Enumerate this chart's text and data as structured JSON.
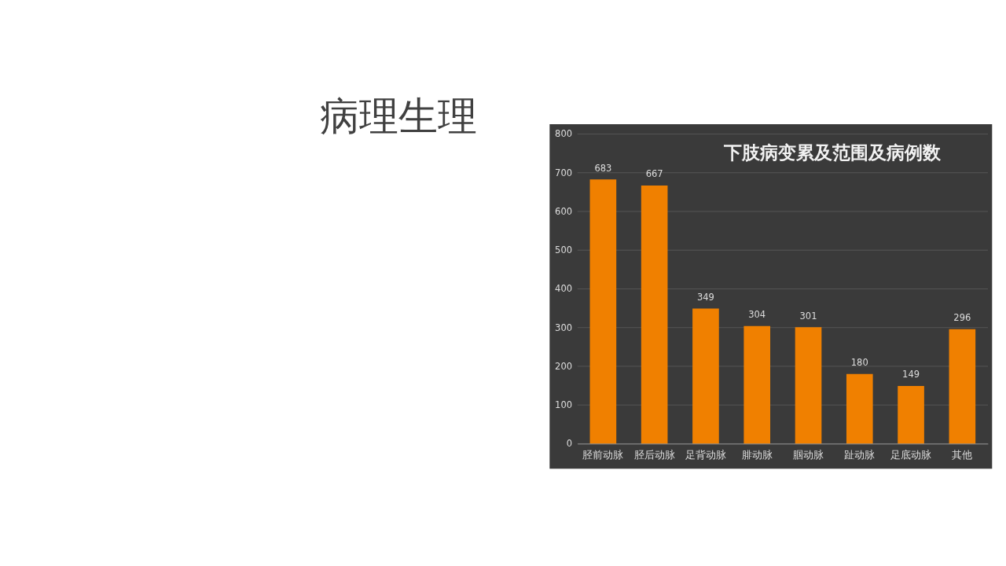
{
  "chart_data": {
    "type": "bar",
    "title": "病理生理",
    "subtitle": "下肢病变累及范围及病例数",
    "categories": [
      "胫前动脉",
      "胫后动脉",
      "足背动脉",
      "腓动脉",
      "腘动脉",
      "趾动脉",
      "足底动脉",
      "其他"
    ],
    "values": [
      683,
      667,
      349,
      304,
      301,
      180,
      149,
      296
    ],
    "color": "#f08000",
    "ylim": [
      0,
      800
    ],
    "yticks": [
      0,
      100,
      200,
      300,
      400,
      500,
      600,
      700,
      800
    ],
    "grid": "y",
    "data_labels": true
  }
}
